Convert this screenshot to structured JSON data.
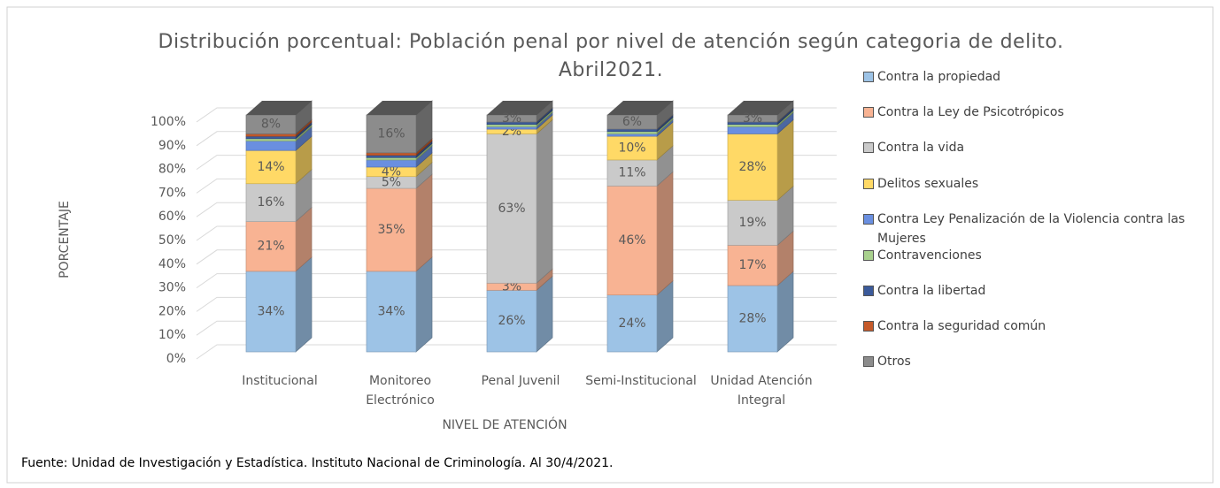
{
  "chart_data": {
    "type": "bar3d_stacked",
    "title": "Distribución porcentual: Población penal por nivel de atención según categoria de delito. Abril2021.",
    "y_axis_label": "PORCENTAJE",
    "x_axis_label": "NIVEL DE ATENCIÓN",
    "source": "Fuente: Unidad de Investigación y Estadística. Instituto Nacional de Criminología. Al 30/4/2021.",
    "categories": [
      "Institucional",
      "Monitoreo Electrónico",
      "Penal Juvenil",
      "Semi-Institucional",
      "Unidad Atención Integral"
    ],
    "ylim": [
      0,
      100
    ],
    "yticks": [
      {
        "value": 0,
        "label": "0%"
      },
      {
        "value": 10,
        "label": "10%"
      },
      {
        "value": 20,
        "label": "20%"
      },
      {
        "value": 30,
        "label": "30%"
      },
      {
        "value": 40,
        "label": "40%"
      },
      {
        "value": 50,
        "label": "50%"
      },
      {
        "value": 60,
        "label": "60%"
      },
      {
        "value": 70,
        "label": "70%"
      },
      {
        "value": 80,
        "label": "80%"
      },
      {
        "value": 90,
        "label": "90%"
      },
      {
        "value": 100,
        "label": "100%"
      }
    ],
    "grid": true,
    "legend": "right",
    "series": [
      {
        "name": "Contra la propiedad",
        "color": "#9dc3e6",
        "values": [
          34,
          34,
          26,
          24,
          28
        ],
        "value_labels": [
          "34%",
          "34%",
          "26%",
          "24%",
          "28%"
        ]
      },
      {
        "name": "Contra la Ley de Psicotrópicos",
        "color": "#f8b393",
        "values": [
          21,
          35,
          3,
          46,
          17
        ],
        "value_labels": [
          "21%",
          "35%",
          "3%",
          "46%",
          "17%"
        ]
      },
      {
        "name": "Contra la vida",
        "color": "#cacaca",
        "values": [
          16,
          5,
          63,
          11,
          19
        ],
        "value_labels": [
          "16%",
          "5%",
          "63%",
          "11%",
          "19%"
        ]
      },
      {
        "name": "Delitos sexuales",
        "color": "#ffd966",
        "values": [
          14,
          4,
          2,
          10,
          28
        ],
        "value_labels": [
          "14%",
          "4%",
          "2%",
          "10%",
          "28%"
        ]
      },
      {
        "name": "Contra Ley Penalización de la Violencia contra las Mujeres",
        "color": "#6a8fe0",
        "values": [
          4,
          3,
          1,
          1,
          3
        ],
        "value_labels": [
          null,
          null,
          null,
          null,
          null
        ]
      },
      {
        "name": "Contravenciones",
        "color": "#a9d18e",
        "values": [
          1,
          1,
          1,
          1,
          1
        ],
        "value_labels": [
          null,
          null,
          null,
          null,
          null
        ]
      },
      {
        "name": "Contra la libertad",
        "color": "#3b5a9a",
        "values": [
          1,
          1,
          1,
          1,
          1
        ],
        "value_labels": [
          null,
          null,
          null,
          null,
          null
        ]
      },
      {
        "name": "Contra la seguridad común",
        "color": "#c55a2a",
        "values": [
          1,
          1,
          0,
          0,
          0
        ],
        "value_labels": [
          null,
          null,
          null,
          null,
          null
        ]
      },
      {
        "name": "Otros",
        "color": "#8c8c8c",
        "values": [
          8,
          16,
          3,
          6,
          3
        ],
        "value_labels": [
          "8%",
          "16%",
          "3%",
          "6%",
          "3%"
        ]
      }
    ]
  }
}
